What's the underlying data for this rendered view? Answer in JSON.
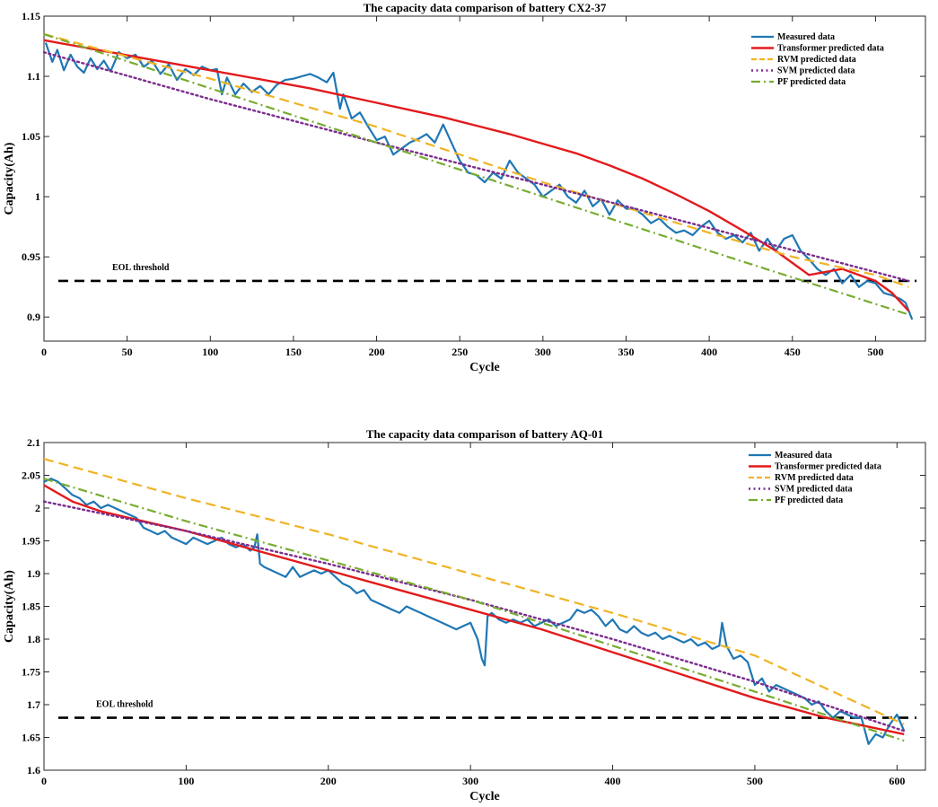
{
  "chart_data": [
    {
      "type": "line",
      "title": "The capacity data comparison of battery CX2-37",
      "xlabel": "Cycle",
      "ylabel": "Capacity(Ah)",
      "xlim": [
        0,
        530
      ],
      "ylim": [
        0.88,
        1.15
      ],
      "xticks": [
        0,
        50,
        100,
        150,
        200,
        250,
        300,
        350,
        400,
        450,
        500
      ],
      "yticks": [
        0.9,
        0.95,
        1,
        1.05,
        1.1,
        1.15
      ],
      "ytick_labels": [
        "0.9",
        "0.95",
        "1",
        "1.05",
        "1.1",
        "1.15"
      ],
      "eol": {
        "label": "EOL threshold",
        "value": 0.93,
        "color": "#000000"
      },
      "legend_position": "top-right",
      "series": [
        {
          "name": "Measured data",
          "color": "#1f77b4",
          "style": "solid",
          "width": 2.2,
          "x": [
            1,
            5,
            8,
            12,
            16,
            20,
            24,
            28,
            32,
            36,
            40,
            45,
            50,
            55,
            60,
            65,
            70,
            75,
            80,
            85,
            90,
            95,
            100,
            104,
            107,
            110,
            115,
            120,
            125,
            130,
            135,
            140,
            145,
            150,
            155,
            160,
            165,
            170,
            174,
            178,
            180,
            185,
            190,
            195,
            200,
            205,
            210,
            215,
            220,
            225,
            230,
            235,
            240,
            245,
            250,
            255,
            260,
            265,
            270,
            275,
            280,
            285,
            290,
            295,
            300,
            305,
            310,
            315,
            320,
            325,
            330,
            335,
            340,
            345,
            350,
            355,
            360,
            365,
            370,
            375,
            380,
            385,
            390,
            395,
            400,
            405,
            410,
            415,
            420,
            425,
            430,
            435,
            440,
            445,
            450,
            455,
            460,
            465,
            470,
            475,
            480,
            485,
            490,
            495,
            500,
            505,
            510,
            515,
            518,
            520,
            522
          ],
          "values": [
            1.128,
            1.112,
            1.122,
            1.105,
            1.118,
            1.108,
            1.103,
            1.115,
            1.106,
            1.113,
            1.104,
            1.12,
            1.115,
            1.118,
            1.108,
            1.113,
            1.102,
            1.11,
            1.097,
            1.106,
            1.101,
            1.108,
            1.105,
            1.106,
            1.085,
            1.099,
            1.085,
            1.094,
            1.087,
            1.092,
            1.085,
            1.093,
            1.097,
            1.098,
            1.1,
            1.102,
            1.099,
            1.095,
            1.103,
            1.073,
            1.085,
            1.065,
            1.07,
            1.058,
            1.047,
            1.05,
            1.035,
            1.04,
            1.045,
            1.048,
            1.052,
            1.045,
            1.06,
            1.045,
            1.03,
            1.02,
            1.018,
            1.012,
            1.02,
            1.015,
            1.03,
            1.02,
            1.015,
            1.01,
            1.0,
            1.005,
            1.01,
            1.0,
            0.995,
            1.005,
            0.992,
            0.998,
            0.985,
            0.997,
            0.99,
            0.99,
            0.985,
            0.978,
            0.982,
            0.975,
            0.97,
            0.972,
            0.968,
            0.975,
            0.98,
            0.97,
            0.965,
            0.968,
            0.962,
            0.97,
            0.955,
            0.965,
            0.955,
            0.965,
            0.968,
            0.955,
            0.948,
            0.94,
            0.935,
            0.94,
            0.928,
            0.935,
            0.925,
            0.93,
            0.928,
            0.92,
            0.918,
            0.915,
            0.912,
            0.905,
            0.898
          ]
        },
        {
          "name": "Transformer predicted data",
          "color": "#e31a1c",
          "style": "solid",
          "width": 2.4,
          "x": [
            0,
            20,
            40,
            60,
            80,
            100,
            120,
            140,
            160,
            180,
            200,
            220,
            240,
            260,
            280,
            300,
            320,
            340,
            360,
            380,
            400,
            420,
            440,
            460,
            480,
            500,
            510,
            520
          ],
          "values": [
            1.13,
            1.125,
            1.12,
            1.115,
            1.11,
            1.105,
            1.1,
            1.095,
            1.09,
            1.084,
            1.078,
            1.072,
            1.066,
            1.059,
            1.052,
            1.044,
            1.036,
            1.026,
            1.015,
            1.002,
            0.988,
            0.972,
            0.955,
            0.935,
            0.94,
            0.93,
            0.92,
            0.905
          ]
        },
        {
          "name": "RVM predicted data",
          "color": "#f0b323",
          "style": "dashed",
          "width": 2.2,
          "x": [
            0,
            100,
            200,
            300,
            400,
            450,
            500,
            520
          ],
          "values": [
            1.135,
            1.098,
            1.058,
            1.012,
            0.97,
            0.95,
            0.935,
            0.925
          ]
        },
        {
          "name": "SVM predicted data",
          "color": "#7b2d8e",
          "style": "dotted",
          "width": 2.4,
          "x": [
            0,
            100,
            200,
            300,
            400,
            520
          ],
          "values": [
            1.12,
            1.081,
            1.045,
            1.01,
            0.974,
            0.93
          ]
        },
        {
          "name": "PF predicted data",
          "color": "#77ac30",
          "style": "dashdot",
          "width": 2.2,
          "x": [
            0,
            100,
            200,
            300,
            400,
            520
          ],
          "values": [
            1.135,
            1.09,
            1.045,
            1.0,
            0.955,
            0.902
          ]
        }
      ]
    },
    {
      "type": "line",
      "title": "The capacity data comparison of battery AQ-01",
      "xlabel": "Cycle",
      "ylabel": "Capacity(Ah)",
      "xlim": [
        0,
        620
      ],
      "ylim": [
        1.6,
        2.1
      ],
      "xticks": [
        0,
        100,
        200,
        300,
        400,
        500,
        600
      ],
      "yticks": [
        1.6,
        1.65,
        1.7,
        1.75,
        1.8,
        1.85,
        1.9,
        1.95,
        2,
        2.05,
        2.1
      ],
      "ytick_labels": [
        "1.6",
        "1.65",
        "1.7",
        "1.75",
        "1.8",
        "1.85",
        "1.9",
        "1.95",
        "2",
        "2.05",
        "2.1"
      ],
      "eol": {
        "label": "EOL threshold",
        "value": 1.68,
        "color": "#000000"
      },
      "legend_position": "top-right",
      "series": [
        {
          "name": "Measured data",
          "color": "#1f77b4",
          "style": "solid",
          "width": 2.2,
          "x": [
            0,
            5,
            10,
            15,
            20,
            25,
            30,
            35,
            40,
            45,
            50,
            55,
            60,
            65,
            70,
            75,
            80,
            85,
            90,
            95,
            100,
            105,
            110,
            115,
            120,
            125,
            130,
            135,
            140,
            145,
            148,
            150,
            152,
            155,
            160,
            165,
            170,
            175,
            180,
            185,
            190,
            195,
            200,
            205,
            210,
            215,
            220,
            225,
            230,
            235,
            240,
            245,
            250,
            255,
            260,
            265,
            270,
            275,
            280,
            285,
            290,
            295,
            300,
            305,
            308,
            310,
            312,
            315,
            320,
            325,
            330,
            335,
            340,
            345,
            350,
            355,
            360,
            365,
            370,
            375,
            380,
            385,
            390,
            395,
            400,
            405,
            410,
            415,
            420,
            425,
            430,
            435,
            440,
            445,
            450,
            455,
            460,
            465,
            470,
            475,
            477,
            480,
            485,
            490,
            495,
            500,
            505,
            510,
            515,
            520,
            525,
            530,
            535,
            540,
            545,
            550,
            555,
            560,
            565,
            570,
            575,
            580,
            585,
            590,
            595,
            600,
            605
          ],
          "values": [
            2.04,
            2.045,
            2.04,
            2.03,
            2.02,
            2.015,
            2.005,
            2.01,
            2.0,
            2.005,
            2.0,
            1.995,
            1.99,
            1.985,
            1.97,
            1.965,
            1.96,
            1.965,
            1.955,
            1.95,
            1.945,
            1.955,
            1.95,
            1.945,
            1.95,
            1.955,
            1.945,
            1.94,
            1.945,
            1.935,
            1.94,
            1.96,
            1.915,
            1.91,
            1.905,
            1.9,
            1.895,
            1.91,
            1.895,
            1.9,
            1.905,
            1.9,
            1.905,
            1.895,
            1.885,
            1.88,
            1.87,
            1.875,
            1.86,
            1.855,
            1.85,
            1.845,
            1.84,
            1.85,
            1.845,
            1.84,
            1.835,
            1.83,
            1.825,
            1.82,
            1.815,
            1.82,
            1.825,
            1.8,
            1.77,
            1.76,
            1.835,
            1.84,
            1.83,
            1.825,
            1.83,
            1.825,
            1.83,
            1.82,
            1.825,
            1.83,
            1.82,
            1.825,
            1.83,
            1.845,
            1.84,
            1.845,
            1.835,
            1.82,
            1.83,
            1.815,
            1.81,
            1.82,
            1.81,
            1.805,
            1.81,
            1.8,
            1.805,
            1.8,
            1.795,
            1.8,
            1.79,
            1.795,
            1.785,
            1.79,
            1.825,
            1.79,
            1.77,
            1.775,
            1.765,
            1.73,
            1.74,
            1.72,
            1.73,
            1.725,
            1.72,
            1.715,
            1.71,
            1.7,
            1.705,
            1.69,
            1.68,
            1.69,
            1.685,
            1.68,
            1.68,
            1.64,
            1.655,
            1.65,
            1.67,
            1.685,
            1.66
          ]
        },
        {
          "name": "Transformer predicted data",
          "color": "#e31a1c",
          "style": "solid",
          "width": 2.4,
          "x": [
            0,
            20,
            40,
            60,
            80,
            100,
            150,
            200,
            250,
            300,
            350,
            400,
            450,
            500,
            550,
            605
          ],
          "values": [
            2.035,
            2.01,
            1.995,
            1.985,
            1.975,
            1.965,
            1.935,
            1.905,
            1.875,
            1.845,
            1.815,
            1.78,
            1.745,
            1.71,
            1.68,
            1.655
          ]
        },
        {
          "name": "RVM predicted data",
          "color": "#f0b323",
          "style": "dashed",
          "width": 2.2,
          "x": [
            0,
            100,
            200,
            300,
            400,
            500,
            605
          ],
          "values": [
            2.075,
            2.015,
            1.96,
            1.9,
            1.84,
            1.775,
            1.67
          ]
        },
        {
          "name": "SVM predicted data",
          "color": "#7b2d8e",
          "style": "dotted",
          "width": 2.4,
          "x": [
            0,
            100,
            200,
            300,
            400,
            500,
            605
          ],
          "values": [
            2.01,
            1.965,
            1.915,
            1.86,
            1.8,
            1.735,
            1.66
          ]
        },
        {
          "name": "PF predicted data",
          "color": "#77ac30",
          "style": "dashdot",
          "width": 2.2,
          "x": [
            0,
            100,
            200,
            300,
            400,
            500,
            605
          ],
          "values": [
            2.045,
            1.98,
            1.92,
            1.86,
            1.79,
            1.72,
            1.645
          ]
        }
      ]
    }
  ]
}
